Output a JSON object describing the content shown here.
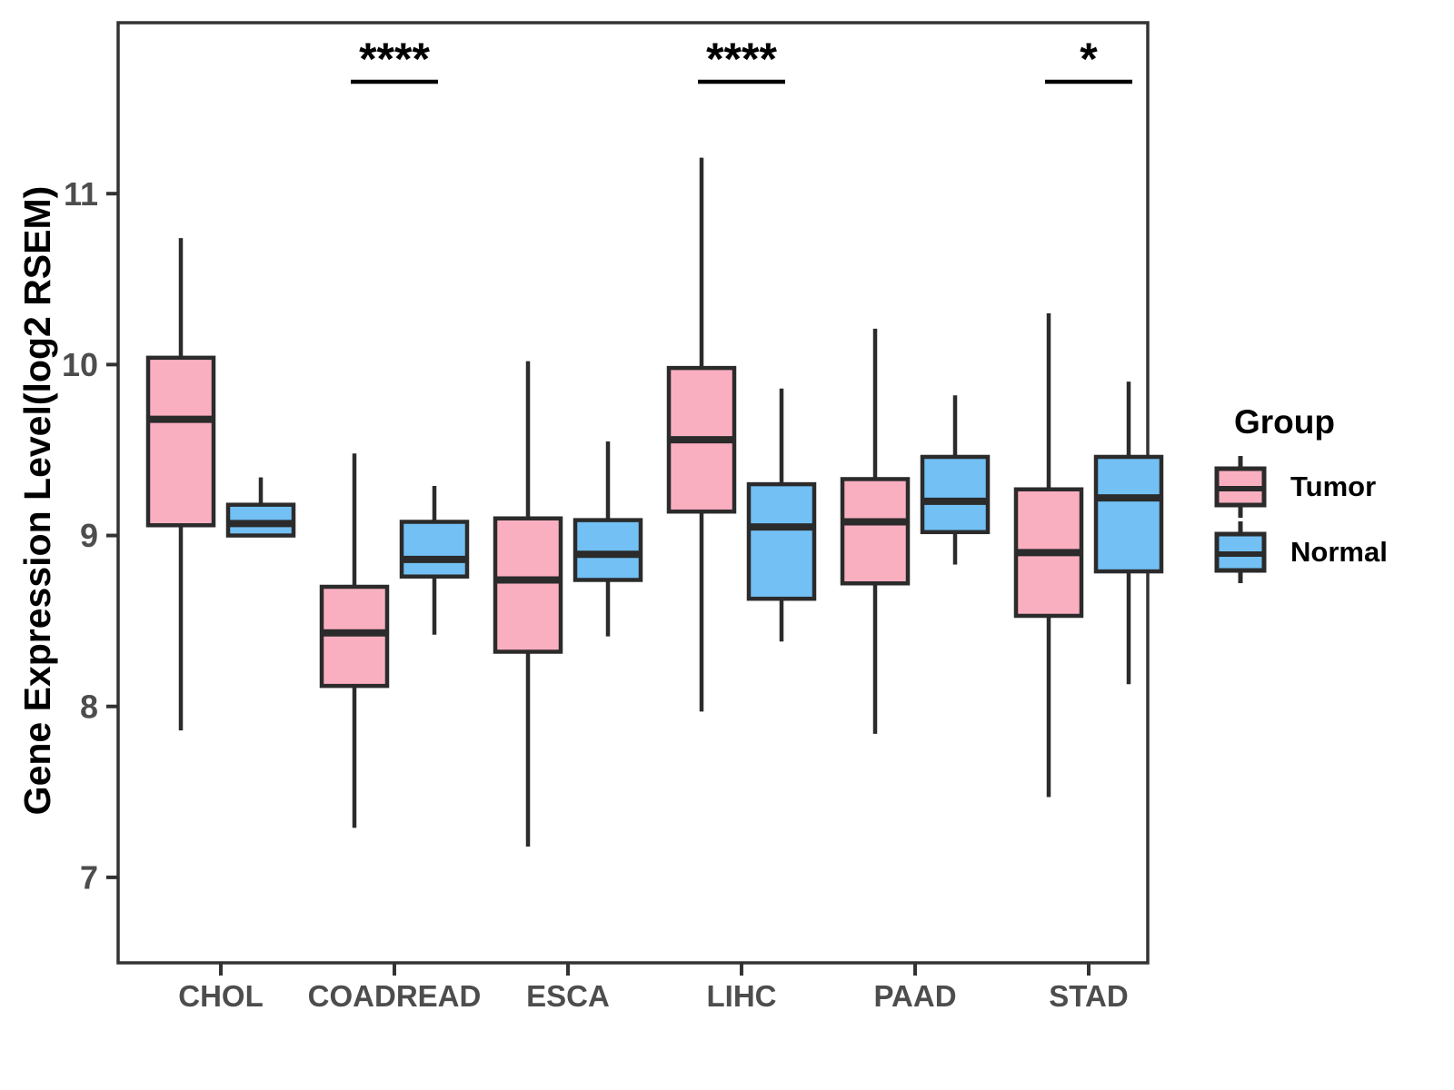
{
  "chart_data": {
    "type": "boxplot",
    "title": "",
    "xlabel": "",
    "ylabel": "Gene Expression Level(log2 RSEM)",
    "legend_title": "Group",
    "categories": [
      "CHOL",
      "COADREAD",
      "ESCA",
      "LIHC",
      "PAAD",
      "STAD"
    ],
    "y_ticks": [
      7,
      8,
      9,
      10,
      11
    ],
    "ylim": [
      6.5,
      12.0
    ],
    "grid": false,
    "legend_position": "right",
    "series": [
      {
        "name": "Tumor",
        "color": "#FAAFC1",
        "boxes": [
          {
            "category": "CHOL",
            "whisker_low": 7.86,
            "q1": 9.06,
            "median": 9.68,
            "q3": 10.04,
            "whisker_high": 10.74
          },
          {
            "category": "COADREAD",
            "whisker_low": 7.29,
            "q1": 8.12,
            "median": 8.43,
            "q3": 8.7,
            "whisker_high": 9.48
          },
          {
            "category": "ESCA",
            "whisker_low": 7.18,
            "q1": 8.32,
            "median": 8.74,
            "q3": 9.1,
            "whisker_high": 10.02
          },
          {
            "category": "LIHC",
            "whisker_low": 7.97,
            "q1": 9.14,
            "median": 9.56,
            "q3": 9.98,
            "whisker_high": 11.21
          },
          {
            "category": "PAAD",
            "whisker_low": 7.84,
            "q1": 8.72,
            "median": 9.08,
            "q3": 9.33,
            "whisker_high": 10.21
          },
          {
            "category": "STAD",
            "whisker_low": 7.47,
            "q1": 8.53,
            "median": 8.9,
            "q3": 9.27,
            "whisker_high": 10.3
          }
        ]
      },
      {
        "name": "Normal",
        "color": "#72C0F4",
        "boxes": [
          {
            "category": "CHOL",
            "whisker_low": 9.0,
            "q1": 9.0,
            "median": 9.07,
            "q3": 9.18,
            "whisker_high": 9.34
          },
          {
            "category": "COADREAD",
            "whisker_low": 8.42,
            "q1": 8.76,
            "median": 8.86,
            "q3": 9.08,
            "whisker_high": 9.29
          },
          {
            "category": "ESCA",
            "whisker_low": 8.41,
            "q1": 8.74,
            "median": 8.89,
            "q3": 9.09,
            "whisker_high": 9.55
          },
          {
            "category": "LIHC",
            "whisker_low": 8.38,
            "q1": 8.63,
            "median": 9.05,
            "q3": 9.3,
            "whisker_high": 9.86
          },
          {
            "category": "PAAD",
            "whisker_low": 8.83,
            "q1": 9.02,
            "median": 9.2,
            "q3": 9.46,
            "whisker_high": 9.82
          },
          {
            "category": "STAD",
            "whisker_low": 8.13,
            "q1": 8.79,
            "median": 9.22,
            "q3": 9.46,
            "whisker_high": 9.9
          }
        ]
      }
    ],
    "significance": [
      {
        "category": "COADREAD",
        "label": "****"
      },
      {
        "category": "LIHC",
        "label": "****"
      },
      {
        "category": "STAD",
        "label": "*"
      }
    ],
    "colors": {
      "tumor": "#FAAFC1",
      "normal": "#72C0F4",
      "box_stroke": "#2B2B2B",
      "panel_border": "#333333",
      "tick_label": "#4D4D4D",
      "annotation": "#000000",
      "background": "#FFFFFF"
    }
  }
}
